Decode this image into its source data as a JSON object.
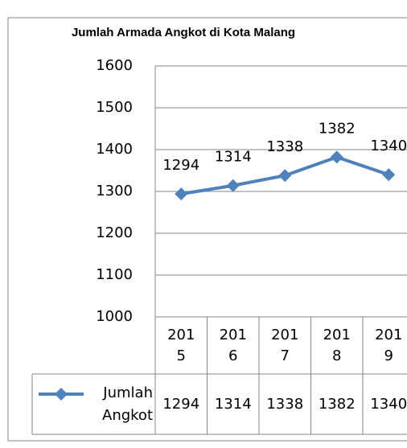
{
  "chart_data": {
    "type": "line",
    "title": "Jumlah Armada Angkot di Kota Malang",
    "categories": [
      "2015",
      "2016",
      "2017",
      "2018",
      "2019"
    ],
    "series": [
      {
        "name": "Jumlah Angkot",
        "color": "#4f81bd",
        "values": [
          1294,
          1314,
          1338,
          1382,
          1340
        ]
      }
    ],
    "ylim": [
      1000,
      1600
    ],
    "yticks": [
      1000,
      1100,
      1200,
      1300,
      1400,
      1500,
      1600
    ],
    "grid": true,
    "legend": "bottom"
  }
}
